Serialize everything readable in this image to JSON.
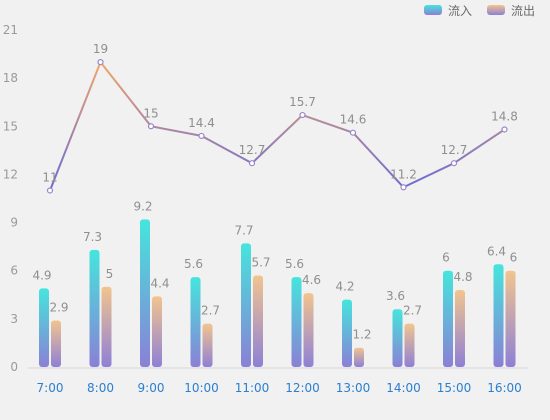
{
  "chart_data": {
    "type": "bar+line",
    "categories": [
      "7:00",
      "8:00",
      "9:00",
      "10:00",
      "11:00",
      "12:00",
      "13:00",
      "14:00",
      "15:00",
      "16:00"
    ],
    "series": [
      {
        "name": "流入",
        "type": "bar",
        "values": [
          4.9,
          7.3,
          9.2,
          5.6,
          7.7,
          5.6,
          4.2,
          3.6,
          6,
          6.4
        ],
        "gradient": [
          "#45e5dd",
          "#8a80d6"
        ]
      },
      {
        "name": "流出",
        "type": "bar",
        "values": [
          2.9,
          5,
          4.4,
          2.7,
          5.7,
          4.6,
          1.2,
          2.7,
          4.8,
          6
        ],
        "gradient": [
          "#f2c48e",
          "#8e80d6"
        ]
      },
      {
        "type": "line",
        "values": [
          11,
          19,
          15,
          14.4,
          12.7,
          15.7,
          14.6,
          11.2,
          12.7,
          14.8
        ],
        "colors": [
          "#6a6ad6",
          "#f1a56a"
        ]
      }
    ],
    "yticks": [
      0,
      3,
      6,
      9,
      12,
      15,
      18,
      21
    ],
    "ylim": [
      0,
      21
    ],
    "grid": false,
    "legend": "top-right"
  }
}
